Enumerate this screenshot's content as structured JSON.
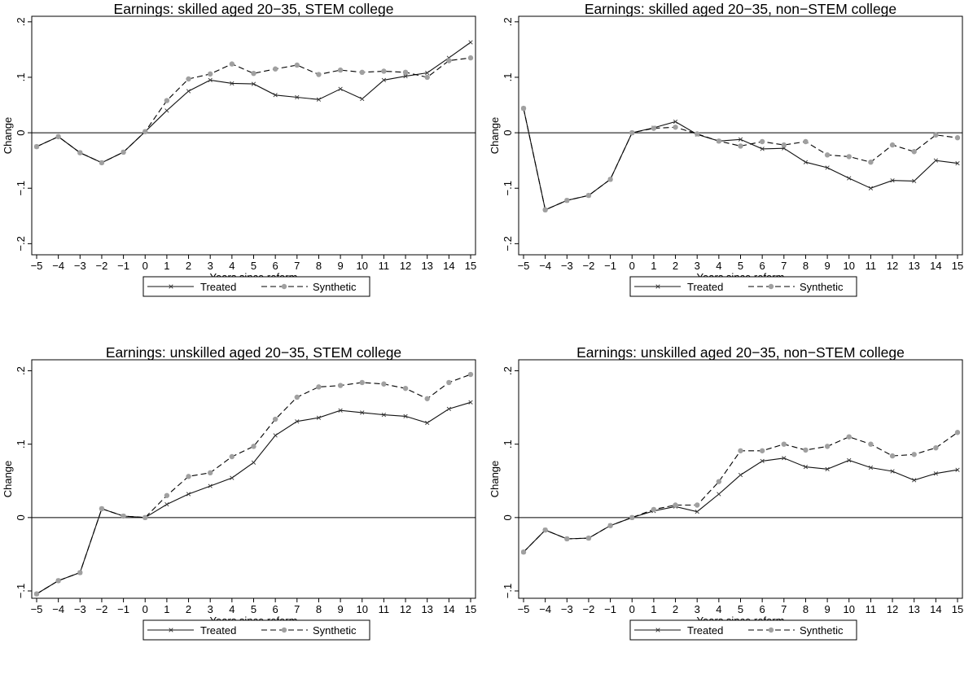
{
  "chart_data": [
    {
      "type": "line",
      "title": "Earnings: skilled aged 20−35, STEM college",
      "xlabel": "Years since reform",
      "ylabel": "Change",
      "x": [
        -5,
        -4,
        -3,
        -2,
        -1,
        0,
        1,
        2,
        3,
        4,
        5,
        6,
        7,
        8,
        9,
        10,
        11,
        12,
        13,
        14,
        15
      ],
      "xtick_labels": [
        "−5",
        "−4",
        "−3",
        "−2",
        "−1",
        "0",
        "1",
        "2",
        "3",
        "4",
        "5",
        "6",
        "7",
        "8",
        "9",
        "10",
        "11",
        "12",
        "13",
        "14",
        "15"
      ],
      "ylim": [
        -0.22,
        0.21
      ],
      "yticks": [
        -0.2,
        -0.1,
        0,
        0.1,
        0.2
      ],
      "ytick_labels": [
        "−.2",
        "−.1",
        "0",
        ".1",
        ".2"
      ],
      "series": [
        {
          "name": "Treated",
          "style": "solid",
          "values": [
            -0.025,
            -0.007,
            -0.036,
            -0.054,
            -0.035,
            0.002,
            0.04,
            0.075,
            0.095,
            0.089,
            0.088,
            0.068,
            0.064,
            0.06,
            0.079,
            0.061,
            0.095,
            0.102,
            0.108,
            0.135,
            0.163
          ]
        },
        {
          "name": "Synthetic",
          "style": "dashed",
          "values": [
            -0.025,
            -0.007,
            -0.036,
            -0.054,
            -0.035,
            0.002,
            0.058,
            0.097,
            0.106,
            0.124,
            0.107,
            0.115,
            0.122,
            0.105,
            0.113,
            0.109,
            0.111,
            0.109,
            0.1,
            0.13,
            0.135
          ]
        }
      ],
      "legend": "bottom"
    },
    {
      "type": "line",
      "title": "Earnings: skilled aged 20−35, non−STEM college",
      "xlabel": "Years since reform",
      "ylabel": "Change",
      "x": [
        -5,
        -4,
        -3,
        -2,
        -1,
        0,
        1,
        2,
        3,
        4,
        5,
        6,
        7,
        8,
        9,
        10,
        11,
        12,
        13,
        14,
        15
      ],
      "xtick_labels": [
        "−5",
        "−4",
        "−3",
        "−2",
        "−1",
        "0",
        "1",
        "2",
        "3",
        "4",
        "5",
        "6",
        "7",
        "8",
        "9",
        "10",
        "11",
        "12",
        "13",
        "14",
        "15"
      ],
      "ylim": [
        -0.22,
        0.21
      ],
      "yticks": [
        -0.2,
        -0.1,
        0,
        0.1,
        0.2
      ],
      "ytick_labels": [
        "−.2",
        "−.1",
        "0",
        ".1",
        ".2"
      ],
      "series": [
        {
          "name": "Treated",
          "style": "solid",
          "values": [
            0.044,
            -0.139,
            -0.122,
            -0.113,
            -0.084,
            0.0,
            0.009,
            0.02,
            -0.003,
            -0.015,
            -0.012,
            -0.029,
            -0.028,
            -0.053,
            -0.063,
            -0.082,
            -0.1,
            -0.086,
            -0.087,
            -0.05,
            -0.055
          ]
        },
        {
          "name": "Synthetic",
          "style": "dashed",
          "values": [
            0.044,
            -0.139,
            -0.122,
            -0.113,
            -0.084,
            0.0,
            0.008,
            0.01,
            -0.002,
            -0.015,
            -0.024,
            -0.016,
            -0.022,
            -0.016,
            -0.04,
            -0.043,
            -0.053,
            -0.022,
            -0.034,
            -0.004,
            -0.009
          ]
        }
      ],
      "legend": "bottom"
    },
    {
      "type": "line",
      "title": "Earnings: unskilled aged 20−35, STEM college",
      "xlabel": "Years since reform",
      "ylabel": "Change",
      "x": [
        -5,
        -4,
        -3,
        -2,
        -1,
        0,
        1,
        2,
        3,
        4,
        5,
        6,
        7,
        8,
        9,
        10,
        11,
        12,
        13,
        14,
        15
      ],
      "xtick_labels": [
        "−5",
        "−4",
        "−3",
        "−2",
        "−1",
        "0",
        "1",
        "2",
        "3",
        "4",
        "5",
        "6",
        "7",
        "8",
        "9",
        "10",
        "11",
        "12",
        "13",
        "14",
        "15"
      ],
      "ylim": [
        -0.11,
        0.215
      ],
      "yticks": [
        -0.1,
        0,
        0.1,
        0.2
      ],
      "ytick_labels": [
        "−.1",
        "0",
        ".1",
        ".2"
      ],
      "series": [
        {
          "name": "Treated",
          "style": "solid",
          "values": [
            -0.104,
            -0.086,
            -0.075,
            0.012,
            0.002,
            0.0,
            0.018,
            0.032,
            0.043,
            0.054,
            0.075,
            0.112,
            0.131,
            0.136,
            0.146,
            0.143,
            0.14,
            0.138,
            0.129,
            0.148,
            0.157
          ]
        },
        {
          "name": "Synthetic",
          "style": "dashed",
          "values": [
            -0.104,
            -0.086,
            -0.075,
            0.012,
            0.002,
            0.0,
            0.03,
            0.056,
            0.061,
            0.083,
            0.097,
            0.134,
            0.164,
            0.178,
            0.18,
            0.184,
            0.182,
            0.176,
            0.162,
            0.184,
            0.195
          ]
        }
      ],
      "legend": "bottom"
    },
    {
      "type": "line",
      "title": "Earnings: unskilled aged 20−35, non−STEM college",
      "xlabel": "Years since reform",
      "ylabel": "Change",
      "x": [
        -5,
        -4,
        -3,
        -2,
        -1,
        0,
        1,
        2,
        3,
        4,
        5,
        6,
        7,
        8,
        9,
        10,
        11,
        12,
        13,
        14,
        15
      ],
      "xtick_labels": [
        "−5",
        "−4",
        "−3",
        "−2",
        "−1",
        "0",
        "1",
        "2",
        "3",
        "4",
        "5",
        "6",
        "7",
        "8",
        "9",
        "10",
        "11",
        "12",
        "13",
        "14",
        "15"
      ],
      "ylim": [
        -0.11,
        0.215
      ],
      "yticks": [
        -0.1,
        0,
        0.1,
        0.2
      ],
      "ytick_labels": [
        "−.1",
        "0",
        ".1",
        ".2"
      ],
      "series": [
        {
          "name": "Treated",
          "style": "solid",
          "values": [
            -0.047,
            -0.017,
            -0.029,
            -0.028,
            -0.011,
            0.0,
            0.009,
            0.015,
            0.008,
            0.032,
            0.058,
            0.077,
            0.081,
            0.069,
            0.066,
            0.078,
            0.068,
            0.063,
            0.051,
            0.06,
            0.065
          ]
        },
        {
          "name": "Synthetic",
          "style": "dashed",
          "values": [
            -0.047,
            -0.017,
            -0.029,
            -0.028,
            -0.011,
            0.0,
            0.011,
            0.017,
            0.017,
            0.049,
            0.091,
            0.091,
            0.1,
            0.092,
            0.097,
            0.11,
            0.1,
            0.084,
            0.086,
            0.095,
            0.116
          ]
        }
      ],
      "legend": "bottom"
    }
  ]
}
